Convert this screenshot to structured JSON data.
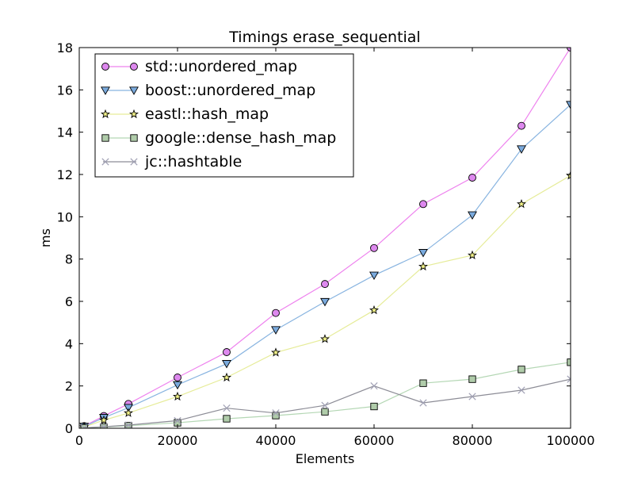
{
  "chart_data": {
    "type": "line",
    "title": "Timings erase_sequential",
    "xlabel": "Elements",
    "ylabel": "ms",
    "xlim": [
      0,
      100000
    ],
    "ylim": [
      0,
      18
    ],
    "xticks": [
      0,
      20000,
      40000,
      60000,
      80000,
      100000
    ],
    "yticks": [
      0,
      2,
      4,
      6,
      8,
      10,
      12,
      14,
      16,
      18
    ],
    "grid": false,
    "legend_position": "top-left",
    "x": [
      1000,
      5000,
      10000,
      20000,
      30000,
      40000,
      50000,
      60000,
      70000,
      80000,
      90000,
      100000
    ],
    "series": [
      {
        "name": "std::unordered_map",
        "marker": "circle",
        "line_color": "#ee82ee",
        "marker_color": "#dd88ee",
        "values": [
          0.1,
          0.58,
          1.15,
          2.4,
          3.6,
          5.45,
          6.82,
          8.52,
          10.6,
          11.85,
          14.3,
          18.0
        ]
      },
      {
        "name": "boost::unordered_map",
        "marker": "triangle-down",
        "line_color": "#88b4e0",
        "marker_color": "#7aaadd",
        "values": [
          0.08,
          0.5,
          0.97,
          2.05,
          3.05,
          4.65,
          5.98,
          7.23,
          8.3,
          10.08,
          13.2,
          15.3
        ]
      },
      {
        "name": "eastl::hash_map",
        "marker": "star",
        "line_color": "#e6ec99",
        "marker_color": "#f4f48a",
        "values": [
          0.06,
          0.38,
          0.72,
          1.5,
          2.4,
          3.58,
          4.22,
          5.58,
          7.65,
          8.18,
          10.6,
          11.95
        ]
      },
      {
        "name": "google::dense_hash_map",
        "marker": "square",
        "line_color": "#b4d7b4",
        "marker_color": "#b0ccaa",
        "values": [
          0.02,
          0.06,
          0.12,
          0.26,
          0.45,
          0.6,
          0.78,
          1.03,
          2.13,
          2.32,
          2.78,
          3.12
        ]
      },
      {
        "name": "jc::hashtable",
        "marker": "x",
        "line_color": "#8c8c96",
        "marker_color": "#a0a0b4",
        "values": [
          0.02,
          0.07,
          0.15,
          0.36,
          0.95,
          0.72,
          1.08,
          2.0,
          1.2,
          1.5,
          1.8,
          2.32
        ]
      }
    ]
  }
}
